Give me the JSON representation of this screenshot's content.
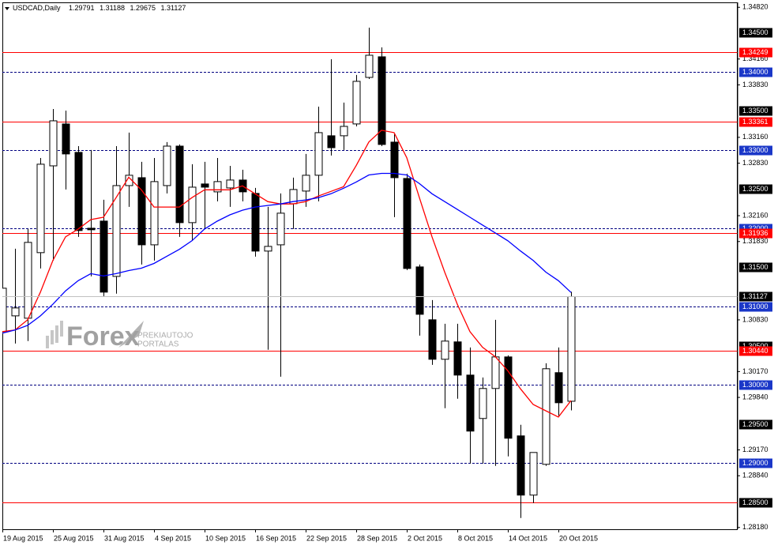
{
  "chart_data": {
    "type": "candlestick",
    "title": "USDCAD,Daily",
    "categories": [
      "19 Aug 2015",
      null,
      null,
      null,
      "25 Aug 2015",
      null,
      null,
      null,
      "31 Aug 2015",
      null,
      null,
      null,
      "4 Sep 2015",
      null,
      null,
      null,
      "10 Sep 2015",
      null,
      null,
      null,
      "16 Sep 2015",
      null,
      null,
      null,
      "22 Sep 2015",
      null,
      null,
      null,
      "28 Sep 2015",
      null,
      null,
      null,
      "2 Oct 2015",
      null,
      null,
      null,
      "8 Oct 2015",
      null,
      null,
      null,
      "14 Oct 2015",
      null,
      null,
      null,
      "20 Oct 2015",
      null
    ],
    "open": [
      1.3068,
      1.30881,
      1.30851,
      1.31688,
      1.32796,
      1.33331,
      1.32968,
      1.32,
      1.32091,
      1.31385,
      1.32544,
      1.32645,
      1.31788,
      1.32544,
      1.33048,
      1.32071,
      1.32565,
      1.32464,
      1.32514,
      1.32615,
      1.32444,
      1.31708,
      1.31788,
      1.32313,
      1.32474,
      1.32676,
      1.3318,
      1.3318,
      1.33331,
      1.33925,
      1.34188,
      1.33099,
      1.32635,
      1.31506,
      1.30831,
      1.30327,
      1.30549,
      1.30125,
      1.29571,
      1.29954,
      1.30357,
      1.29349,
      1.28593,
      1.28986,
      1.30156,
      1.29791
    ],
    "high": [
      1.31758,
      1.31738,
      1.3199,
      1.32897,
      1.33522,
      1.33502,
      1.33048,
      1.32998,
      1.32363,
      1.33048,
      1.3322,
      1.32847,
      1.32897,
      1.33099,
      1.33069,
      1.32817,
      1.32847,
      1.32897,
      1.32796,
      1.32746,
      1.32514,
      1.32272,
      1.32444,
      1.32645,
      1.32948,
      1.33552,
      1.34157,
      1.33603,
      1.33956,
      1.3456,
      1.34308,
      1.332,
      1.32696,
      1.31536,
      1.31083,
      1.3078,
      1.3078,
      1.30478,
      1.30095,
      1.30831,
      1.30377,
      1.2949,
      1.29137,
      1.30276,
      1.30478,
      1.31188
    ],
    "low": [
      1.30226,
      1.30528,
      1.30559,
      1.31486,
      1.31587,
      1.32494,
      1.31889,
      1.31385,
      1.31133,
      1.31164,
      1.32272,
      1.31536,
      1.31587,
      1.32444,
      1.31889,
      1.31839,
      1.3199,
      1.32343,
      1.32272,
      1.32343,
      1.31637,
      1.30448,
      1.30105,
      1.3199,
      1.32272,
      1.32343,
      1.32928,
      1.32998,
      1.333,
      1.33905,
      1.33048,
      1.32141,
      1.31466,
      1.30629,
      1.30256,
      1.29702,
      1.29823,
      1.28996,
      1.28996,
      1.28966,
      1.29087,
      1.28301,
      1.28492,
      1.28966,
      1.29601,
      1.29675
    ],
    "close": [
      1.31234,
      1.30982,
      1.31819,
      1.32817,
      1.33371,
      1.32948,
      1.3197,
      1.3198,
      1.31184,
      1.32544,
      1.32676,
      1.31788,
      1.32595,
      1.33048,
      1.32071,
      1.32524,
      1.32524,
      1.32595,
      1.32615,
      1.32464,
      1.31708,
      1.31768,
      1.32192,
      1.32494,
      1.32676,
      1.3322,
      1.33028,
      1.333,
      1.33875,
      1.34208,
      1.33069,
      1.32645,
      1.31486,
      1.30901,
      1.30327,
      1.30559,
      1.30125,
      1.2941,
      1.29954,
      1.30357,
      1.29319,
      1.28593,
      1.29137,
      1.30206,
      1.29772,
      1.31127
    ],
    "up_color": "#ffffff",
    "down_color": "#000000",
    "outline_color": "#000000",
    "moving_averages": [
      {
        "color": "#ff0000",
        "values": [
          1.3068,
          1.307,
          1.3083,
          1.3118,
          1.3159,
          1.3189,
          1.3199,
          1.3211,
          1.3214,
          1.3239,
          1.3265,
          1.3249,
          1.3227,
          1.3227,
          1.3227,
          1.3239,
          1.3249,
          1.3249,
          1.3249,
          1.3254,
          1.3244,
          1.3234,
          1.3231,
          1.3231,
          1.3234,
          1.3241,
          1.3247,
          1.3253,
          1.328,
          1.331,
          1.3325,
          1.3322,
          1.329,
          1.3239,
          1.3189,
          1.3144,
          1.3103,
          1.3068,
          1.3048,
          1.3036,
          1.3018,
          1.2995,
          1.2975,
          1.2967,
          1.2959,
          1.298
        ]
      },
      {
        "color": "#0000ff",
        "values": [
          1.3066,
          1.307,
          1.3076,
          1.3088,
          1.3103,
          1.312,
          1.3133,
          1.3142,
          1.3139,
          1.3142,
          1.3146,
          1.3149,
          1.3155,
          1.3164,
          1.3173,
          1.3184,
          1.3199,
          1.3209,
          1.3217,
          1.3223,
          1.3227,
          1.3229,
          1.3231,
          1.3234,
          1.3236,
          1.3239,
          1.3244,
          1.3251,
          1.3259,
          1.3268,
          1.327,
          1.327,
          1.3268,
          1.3257,
          1.3244,
          1.3234,
          1.3224,
          1.3214,
          1.3204,
          1.3194,
          1.3184,
          1.3171,
          1.3159,
          1.3144,
          1.3133,
          1.3118
        ]
      }
    ],
    "ylim": [
      1.28157,
      1.34883
    ],
    "yticks": [
      {
        "value": 1.3482,
        "label": "1.34820"
      },
      {
        "value": 1.3416,
        "label": "1.34160"
      },
      {
        "value": 1.3383,
        "label": "1.33830"
      },
      {
        "value": 1.3316,
        "label": "1.33160"
      },
      {
        "value": 1.3283,
        "label": "1.32830"
      },
      {
        "value": 1.3216,
        "label": "1.32160"
      },
      {
        "value": 1.3183,
        "label": "1.31830"
      },
      {
        "value": 1.3083,
        "label": "1.30830"
      },
      {
        "value": 1.3017,
        "label": "1.30170"
      },
      {
        "value": 1.2984,
        "label": "1.29840"
      },
      {
        "value": 1.2917,
        "label": "1.29170"
      },
      {
        "value": 1.2884,
        "label": "1.28840"
      },
      {
        "value": 1.2818,
        "label": "1.28180"
      }
    ],
    "levels": [
      {
        "value": 1.345,
        "label": "1.34500",
        "line_style": "none",
        "line_color": "#000000",
        "box_color": "#000000"
      },
      {
        "value": 1.335,
        "label": "1.33500",
        "line_style": "none",
        "line_color": "#000000",
        "box_color": "#000000"
      },
      {
        "value": 1.325,
        "label": "1.32500",
        "line_style": "none",
        "line_color": "#000000",
        "box_color": "#000000"
      },
      {
        "value": 1.315,
        "label": "1.31500",
        "line_style": "none",
        "line_color": "#000000",
        "box_color": "#000000"
      },
      {
        "value": 1.305,
        "label": "1.30500",
        "line_style": "none",
        "line_color": "#000000",
        "box_color": "#000000"
      },
      {
        "value": 1.295,
        "label": "1.29500",
        "line_style": "none",
        "line_color": "#000000",
        "box_color": "#000000"
      },
      {
        "value": 1.34,
        "label": "1.34000",
        "line_style": "dashed",
        "line_color": "#000080",
        "box_color": "#1a37c8"
      },
      {
        "value": 1.33,
        "label": "1.33000",
        "line_style": "dashed",
        "line_color": "#000080",
        "box_color": "#1a37c8"
      },
      {
        "value": 1.32,
        "label": "1.32000",
        "line_style": "dashed",
        "line_color": "#000080",
        "box_color": "#1a37c8"
      },
      {
        "value": 1.31,
        "label": "1.31000",
        "line_style": "dashed",
        "line_color": "#000080",
        "box_color": "#1a37c8"
      },
      {
        "value": 1.3,
        "label": "1.30000",
        "line_style": "dashed",
        "line_color": "#000080",
        "box_color": "#1a37c8"
      },
      {
        "value": 1.29,
        "label": "1.29000",
        "line_style": "dashed",
        "line_color": "#000080",
        "box_color": "#1a37c8"
      },
      {
        "value": 1.34249,
        "line_style": "solid",
        "line_color": "#ff0000",
        "box_color": "#ff0000"
      },
      {
        "value": 1.33361,
        "line_style": "solid",
        "line_color": "#ff0000",
        "box_color": "#ff0000"
      },
      {
        "value": 1.31936,
        "line_style": "solid",
        "line_color": "#ff0000",
        "box_color": "#ff0000"
      },
      {
        "value": 1.3044,
        "label": "1.30440",
        "line_style": "solid",
        "line_color": "#ff0000",
        "box_color": "#ff0000"
      },
      {
        "value": 1.285,
        "label": "1.28500",
        "line_style": "solid",
        "line_color": "#ff0000",
        "box_color": "#000000"
      }
    ],
    "price_line": true,
    "price_line_color": "#c0c0c0",
    "watermark": {
      "brand": "Forex",
      "line1": "PREKIAUTOJO",
      "line2": "PORTALAS"
    }
  }
}
